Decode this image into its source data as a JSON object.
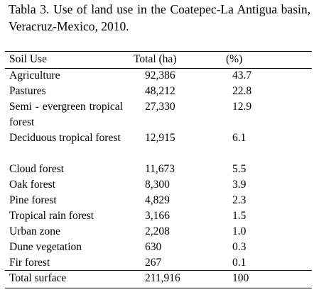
{
  "caption": "Tabla 3. Use of land use in the Coatepec-La Antigua basin, Veracruz-Mexico, 2010.",
  "table": {
    "headers": {
      "use": "Soil Use",
      "total": "Total (ha)",
      "pct": "(%)"
    },
    "rows": [
      {
        "use": "Agriculture",
        "total": "92,386",
        "pct": "43.7"
      },
      {
        "use": "Pastures",
        "total": "48,212",
        "pct": "22.8"
      },
      {
        "use": "Semi - evergreen tropical forest",
        "total": "27,330",
        "pct": "12.9"
      },
      {
        "use": "Deciduous tropical forest",
        "total": "12,915",
        "pct": "6.1"
      },
      {
        "use": "Cloud forest",
        "total": "11,673",
        "pct": "5.5"
      },
      {
        "use": "Oak forest",
        "total": "8,300",
        "pct": "3.9"
      },
      {
        "use": "Pine forest",
        "total": "4,829",
        "pct": "2.3"
      },
      {
        "use": "Tropical rain forest",
        "total": "3,166",
        "pct": "1.5"
      },
      {
        "use": "Urban zone",
        "total": "2,208",
        "pct": "1.0"
      },
      {
        "use": "Dune vegetation",
        "total": "630",
        "pct": "0.3"
      },
      {
        "use": "Fir forest",
        "total": "267",
        "pct": "0.1"
      }
    ],
    "total_row": {
      "use": "Total surface",
      "total": "211,916",
      "pct": "100"
    }
  }
}
